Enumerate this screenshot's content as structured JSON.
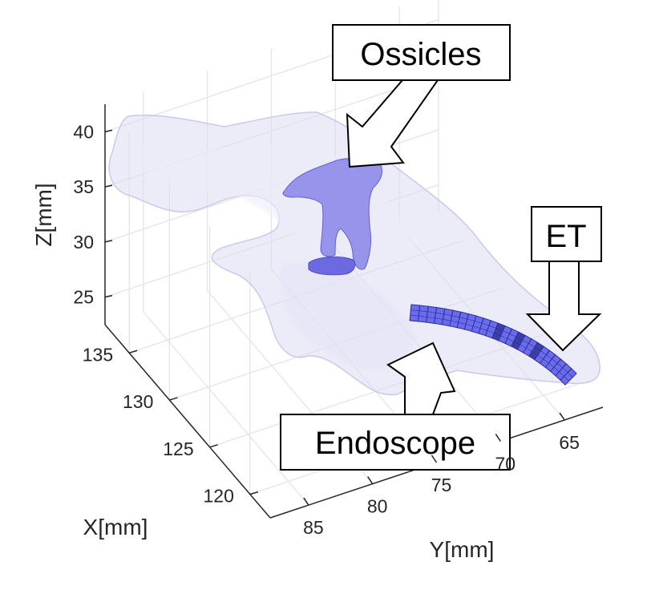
{
  "chart_data": {
    "type": "3d-surface",
    "title": "",
    "axes": {
      "x": {
        "label": "X[mm]",
        "ticks": [
          120,
          125,
          130,
          135
        ],
        "range": [
          117.5,
          138
        ]
      },
      "y": {
        "label": "Y[mm]",
        "ticks": [
          65,
          70,
          75,
          80,
          85
        ],
        "range": [
          62,
          88
        ]
      },
      "z": {
        "label": "Z[mm]",
        "ticks": [
          25,
          30,
          35,
          40
        ],
        "range": [
          22.5,
          42.5
        ]
      }
    },
    "grid": true,
    "annotations": [
      {
        "text": "Ossicles"
      },
      {
        "text": "ET"
      },
      {
        "text": "Endoscope"
      }
    ],
    "colors": {
      "cavity": "#dcdcf3",
      "ossicles": "#7b78e6",
      "endoscope": "#6a6cf0",
      "grid": "#e3e3e3",
      "axis": "#262626"
    }
  }
}
